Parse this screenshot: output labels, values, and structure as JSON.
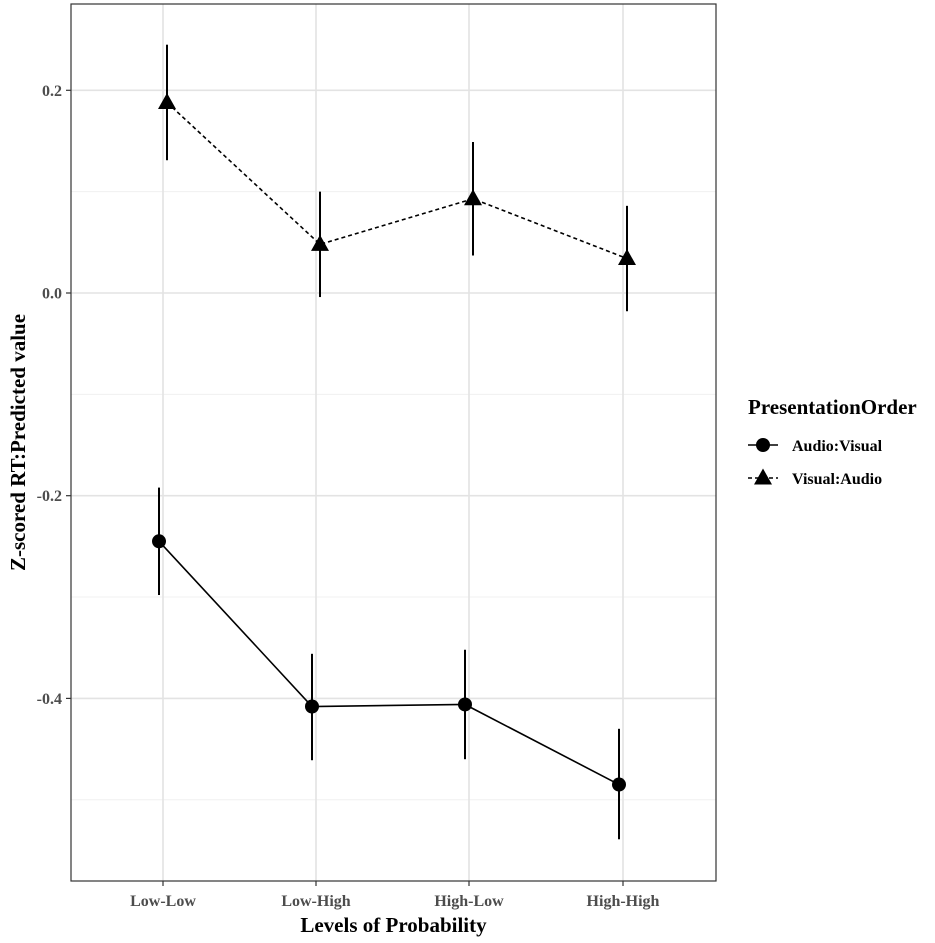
{
  "chart_data": {
    "type": "line",
    "title": "",
    "xlabel": "Levels of Probability",
    "ylabel": "Z-scored RT:Predicted value",
    "categories": [
      "Low-Low",
      "Low-High",
      "High-Low",
      "High-High"
    ],
    "ylim": [
      -0.575,
      0.285
    ],
    "yticks": [
      -0.4,
      -0.2,
      0.0,
      0.2
    ],
    "ytick_labels": [
      "-0.4",
      "-0.2",
      "0.0",
      "0.2"
    ],
    "grid": true,
    "legend": {
      "title": "PresentationOrder",
      "position": "right"
    },
    "series": [
      {
        "name": "Audio:Visual",
        "marker": "circle",
        "line_style": "solid",
        "values": [
          -0.245,
          -0.408,
          -0.406,
          -0.485
        ],
        "lower": [
          -0.298,
          -0.461,
          -0.46,
          -0.539
        ],
        "upper": [
          -0.192,
          -0.356,
          -0.352,
          -0.43
        ]
      },
      {
        "name": "Visual:Audio",
        "marker": "triangle",
        "line_style": "dashed",
        "values": [
          0.188,
          0.048,
          0.093,
          0.034
        ],
        "lower": [
          0.131,
          -0.004,
          0.037,
          -0.018
        ],
        "upper": [
          0.245,
          0.1,
          0.149,
          0.086
        ]
      }
    ]
  }
}
